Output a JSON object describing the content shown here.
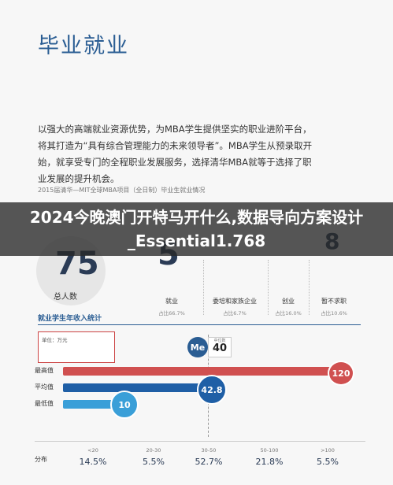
{
  "heading": "毕业就业",
  "paragraph": "以强大的高端就业资源优势，为MBA学生提供坚实的职业进阶平台，将其打造为“具有综合管理能力的未来领导者”。MBA学生从预录取开始，就享受专门的全程职业发展服务，选择清华MBA就等于选择了职业发展的提升机会。",
  "caption": "2015届清华—MIT全球MBA项目（全日制）毕业生就业情况",
  "banner": "2024今晚澳门开特马开什么,数据导向方案设计_Essential1.768",
  "total": {
    "value": "75",
    "label": "总人数"
  },
  "partial_numbers": [
    "5",
    "8"
  ],
  "outcomes": [
    {
      "label": "就业",
      "share": "占比66.7%"
    },
    {
      "label": "委培和家族企业",
      "share": "占比6.7%"
    },
    {
      "label": "创业",
      "share": "占比16.0%"
    },
    {
      "label": "暂不求职",
      "share": "占比10.6%"
    }
  ],
  "income": {
    "title": "就业学生年收入统计",
    "unit": "单位：万元",
    "median_tag": "Me",
    "median_label": "中位数",
    "median": "40",
    "rows": [
      {
        "label": "最高值",
        "value": "120"
      },
      {
        "label": "平均值",
        "value": "42.8"
      },
      {
        "label": "最低值",
        "value": "10"
      }
    ],
    "dist_label": "分布",
    "distribution": [
      {
        "range": "<20",
        "share": "14.5%"
      },
      {
        "range": "20-30",
        "share": "5.5%"
      },
      {
        "range": "30-50",
        "share": "52.7%"
      },
      {
        "range": "50-100",
        "share": "21.8%"
      },
      {
        "range": ">100",
        "share": "5.5%"
      }
    ]
  }
}
